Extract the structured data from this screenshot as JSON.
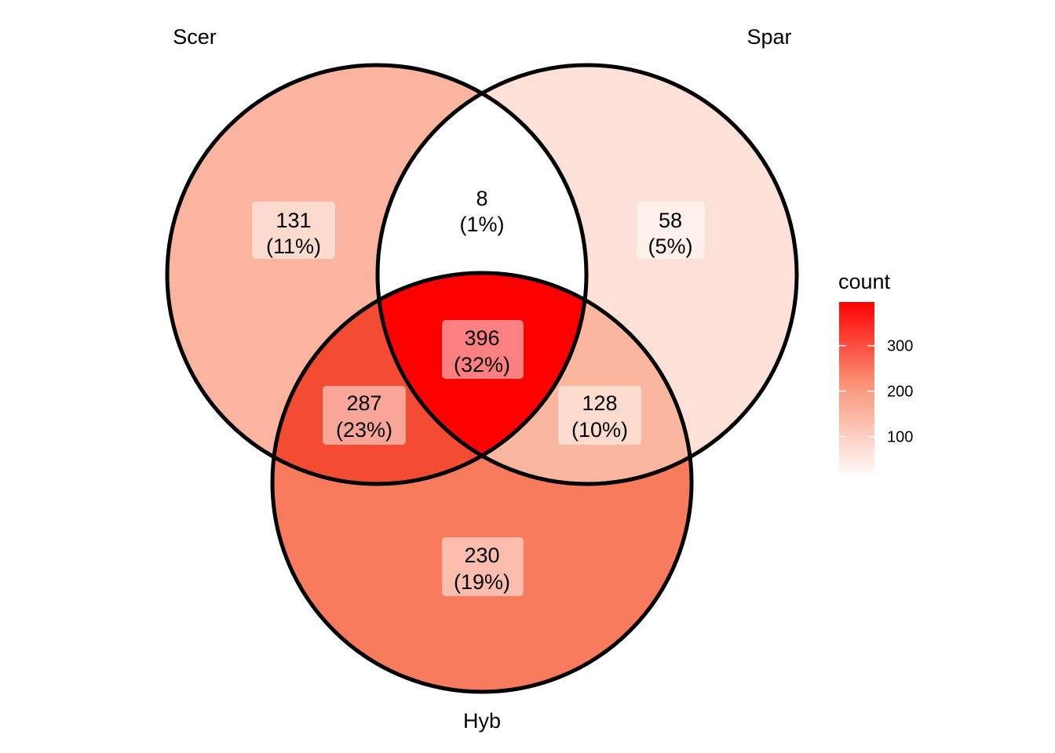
{
  "diagram": {
    "type": "venn",
    "sets": [
      {
        "key": "A",
        "label": "Scer"
      },
      {
        "key": "B",
        "label": "Spar"
      },
      {
        "key": "C",
        "label": "Hyb"
      }
    ],
    "regions": [
      {
        "id": "A",
        "count": 131,
        "count_label": "131",
        "pct_label": "(11%)",
        "color": "#FAB49F"
      },
      {
        "id": "B",
        "count": 58,
        "count_label": "58",
        "pct_label": "(5%)",
        "color": "#FDE0D7"
      },
      {
        "id": "C",
        "count": 230,
        "count_label": "230",
        "pct_label": "(19%)",
        "color": "#F87B5E"
      },
      {
        "id": "AB",
        "count": 8,
        "count_label": "8",
        "pct_label": "(1%)",
        "color": "#FFFFFF"
      },
      {
        "id": "AC",
        "count": 287,
        "count_label": "287",
        "pct_label": "(23%)",
        "color": "#F34C33"
      },
      {
        "id": "BC",
        "count": 128,
        "count_label": "128",
        "pct_label": "(10%)",
        "color": "#FBB69F"
      },
      {
        "id": "ABC",
        "count": 396,
        "count_label": "396",
        "pct_label": "(32%)",
        "color": "#FF0000"
      }
    ]
  },
  "legend": {
    "title": "count",
    "ticks": [
      {
        "value": 100,
        "label": "100"
      },
      {
        "value": 200,
        "label": "200"
      },
      {
        "value": 300,
        "label": "300"
      }
    ],
    "min": 8,
    "max": 396,
    "color_low": "#FFFFFF",
    "color_high": "#FF0000"
  }
}
